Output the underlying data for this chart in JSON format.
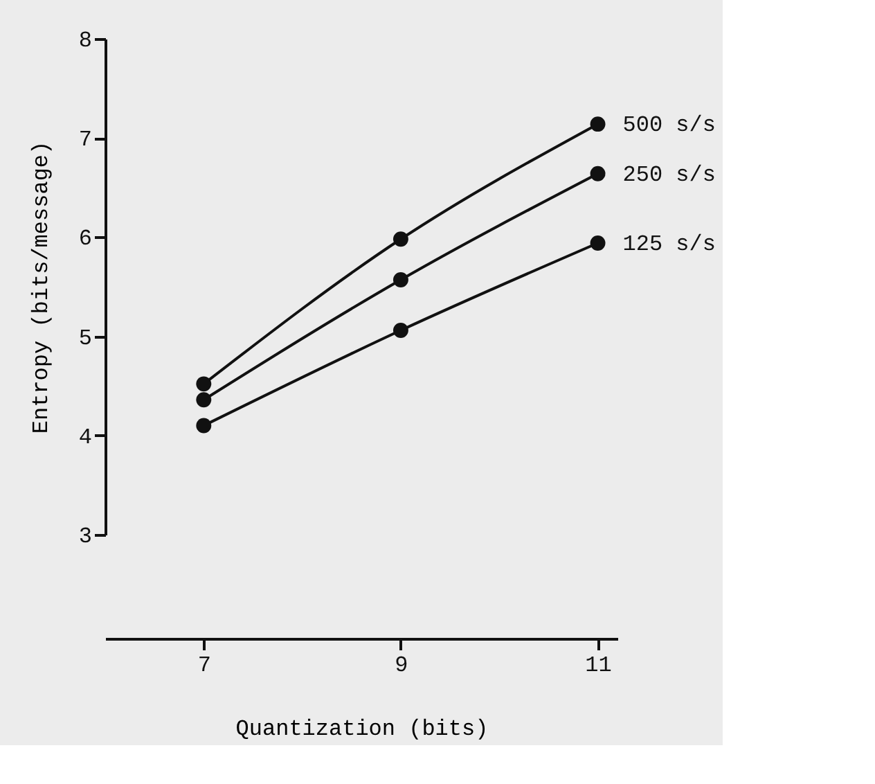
{
  "chart_data": {
    "type": "line",
    "xlabel": "Quantization (bits)",
    "ylabel": "Entropy (bits/message)",
    "x": [
      7,
      9,
      11
    ],
    "series": [
      {
        "name": "500 s/s",
        "color": "#111111",
        "values": [
          4.52,
          5.98,
          7.14
        ]
      },
      {
        "name": "250 s/s",
        "color": "#111111",
        "values": [
          4.36,
          5.57,
          6.64
        ]
      },
      {
        "name": "125 s/s",
        "color": "#111111",
        "values": [
          4.1,
          5.06,
          5.94
        ]
      }
    ],
    "xlim": [
      6,
      11.2
    ],
    "xticks": [
      7,
      9,
      11
    ],
    "ylim": [
      3,
      8
    ],
    "yticks": [
      3,
      4,
      5,
      6,
      7,
      8
    ],
    "marker": "circle",
    "line_style": "solid",
    "grid": false,
    "legend": false
  }
}
